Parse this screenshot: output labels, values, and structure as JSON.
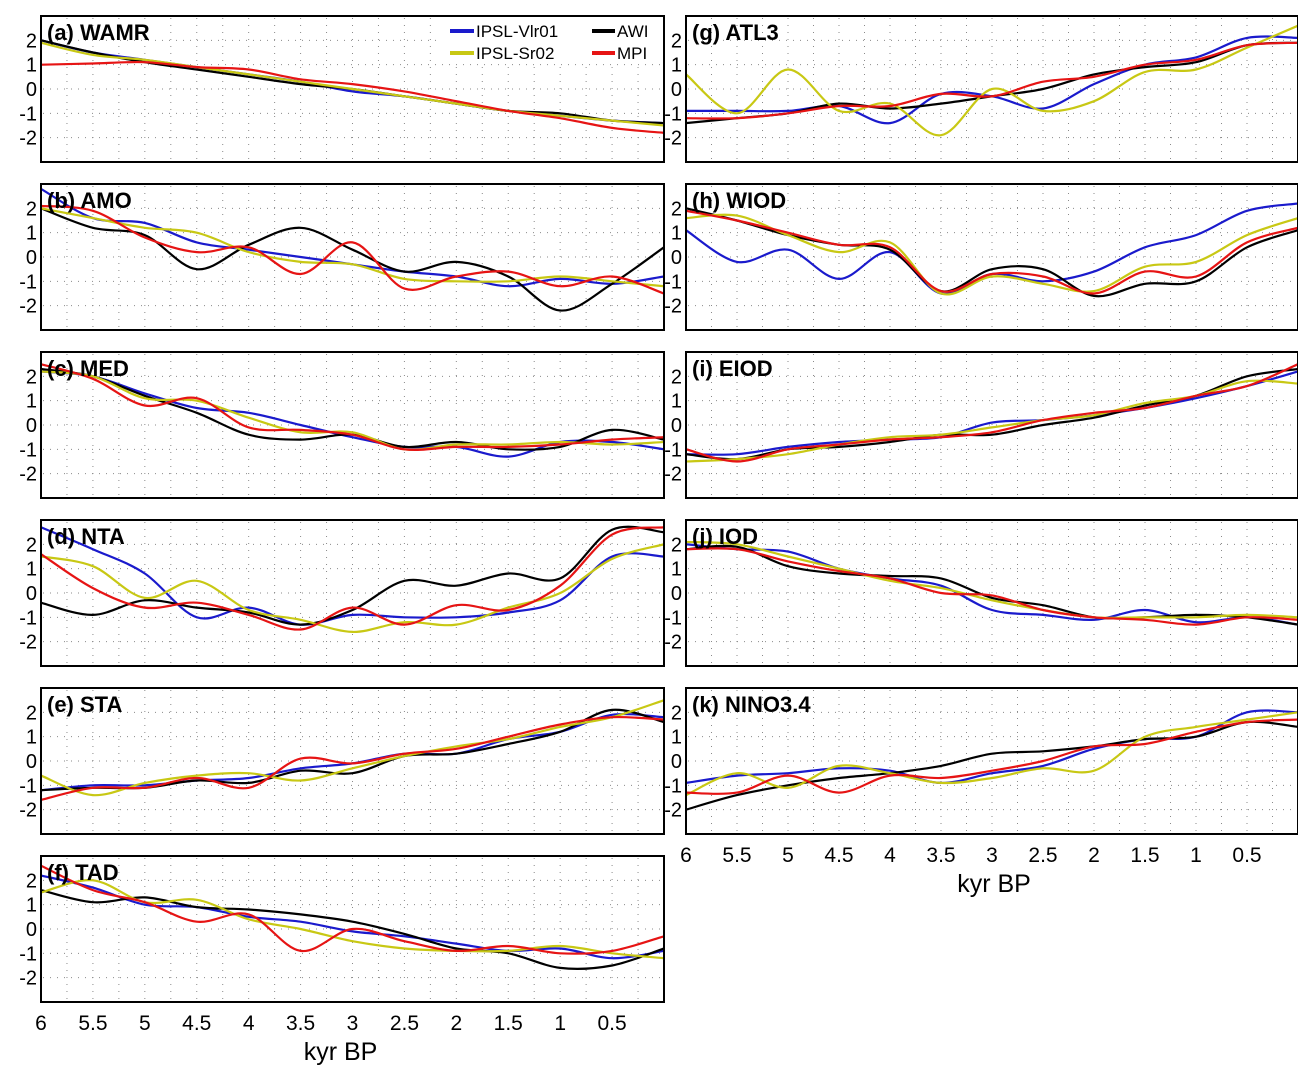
{
  "chart_data": {
    "type": "line",
    "xlabel": "kyr BP",
    "x_ticks": [
      "6",
      "5.5",
      "5",
      "4.5",
      "4",
      "3.5",
      "3",
      "2.5",
      "2",
      "1.5",
      "1",
      "0.5"
    ],
    "y_ticks": [
      "2",
      "1",
      "0",
      "-1",
      "-2"
    ],
    "xlim": [
      6,
      0
    ],
    "ylim": [
      -3,
      3
    ],
    "grid": true,
    "legend": {
      "placement": "top-right of panel (a)",
      "entries": [
        {
          "name": "IPSL-Vlr01",
          "color": "#1a1acc"
        },
        {
          "name": "AWI",
          "color": "#000000"
        },
        {
          "name": "IPSL-Sr02",
          "color": "#c8c814"
        },
        {
          "name": "MPI",
          "color": "#e61414"
        }
      ]
    },
    "x": [
      6,
      5.5,
      5,
      4.5,
      4,
      3.5,
      3,
      2.5,
      2,
      1.5,
      1,
      0.5,
      0
    ],
    "panels": [
      {
        "title": "(a) WAMR",
        "series": [
          {
            "name": "IPSL-Vlr01",
            "values": [
              2.0,
              1.5,
              1.2,
              0.9,
              0.6,
              0.3,
              -0.1,
              -0.3,
              -0.6,
              -0.9,
              -1.1,
              -1.3,
              -1.4
            ]
          },
          {
            "name": "AWI",
            "values": [
              2.0,
              1.5,
              1.1,
              0.8,
              0.5,
              0.2,
              0.0,
              -0.3,
              -0.6,
              -0.9,
              -1.0,
              -1.3,
              -1.4
            ]
          },
          {
            "name": "IPSL-Sr02",
            "values": [
              1.9,
              1.4,
              1.2,
              0.9,
              0.6,
              0.3,
              0.0,
              -0.3,
              -0.6,
              -0.9,
              -1.1,
              -1.3,
              -1.5
            ]
          },
          {
            "name": "MPI",
            "values": [
              1.0,
              1.05,
              1.1,
              0.9,
              0.8,
              0.4,
              0.2,
              -0.1,
              -0.5,
              -0.9,
              -1.2,
              -1.6,
              -1.8
            ]
          }
        ]
      },
      {
        "title": "(b) AMO",
        "series": [
          {
            "name": "IPSL-Vlr01",
            "values": [
              2.8,
              1.6,
              1.4,
              0.6,
              0.3,
              0.0,
              -0.3,
              -0.6,
              -0.8,
              -1.2,
              -0.9,
              -1.1,
              -0.8
            ]
          },
          {
            "name": "AWI",
            "values": [
              2.0,
              1.2,
              0.9,
              -0.5,
              0.5,
              1.2,
              0.3,
              -0.6,
              -0.2,
              -0.8,
              -2.2,
              -1.1,
              0.4
            ]
          },
          {
            "name": "IPSL-Sr02",
            "values": [
              2.0,
              1.6,
              1.2,
              1.0,
              0.2,
              -0.2,
              -0.3,
              -0.9,
              -1.0,
              -1.0,
              -0.8,
              -1.0,
              -1.2
            ]
          },
          {
            "name": "MPI",
            "values": [
              2.1,
              1.9,
              0.8,
              0.2,
              0.4,
              -0.7,
              0.6,
              -1.3,
              -0.8,
              -0.6,
              -1.2,
              -0.8,
              -1.5
            ]
          }
        ]
      },
      {
        "title": "(c) MED",
        "series": [
          {
            "name": "IPSL-Vlr01",
            "values": [
              2.2,
              2.0,
              1.3,
              0.7,
              0.5,
              0.0,
              -0.5,
              -0.9,
              -0.9,
              -1.3,
              -0.7,
              -0.7,
              -1.0
            ]
          },
          {
            "name": "AWI",
            "values": [
              2.3,
              2.0,
              1.2,
              0.5,
              -0.4,
              -0.6,
              -0.4,
              -0.9,
              -0.7,
              -1.0,
              -0.9,
              -0.2,
              -0.6
            ]
          },
          {
            "name": "IPSL-Sr02",
            "values": [
              2.2,
              2.0,
              1.1,
              1.0,
              0.3,
              -0.3,
              -0.3,
              -1.0,
              -0.8,
              -0.8,
              -0.7,
              -0.8,
              -0.7
            ]
          },
          {
            "name": "MPI",
            "values": [
              2.5,
              1.9,
              0.8,
              1.1,
              -0.1,
              -0.2,
              -0.4,
              -1.0,
              -0.9,
              -0.9,
              -0.8,
              -0.6,
              -0.5
            ]
          }
        ]
      },
      {
        "title": "(d) NTA",
        "series": [
          {
            "name": "IPSL-Vlr01",
            "values": [
              2.7,
              1.8,
              0.8,
              -1.0,
              -0.6,
              -1.3,
              -0.9,
              -1.0,
              -1.0,
              -0.8,
              -0.3,
              1.5,
              1.5
            ]
          },
          {
            "name": "AWI",
            "values": [
              -0.4,
              -0.9,
              -0.3,
              -0.6,
              -0.8,
              -1.3,
              -0.7,
              0.5,
              0.3,
              0.8,
              0.6,
              2.6,
              2.5
            ]
          },
          {
            "name": "IPSL-Sr02",
            "values": [
              1.5,
              1.1,
              -0.2,
              0.5,
              -0.7,
              -1.1,
              -1.6,
              -1.2,
              -1.3,
              -0.6,
              0.0,
              1.4,
              2.0
            ]
          },
          {
            "name": "MPI",
            "values": [
              1.6,
              0.2,
              -0.6,
              -0.4,
              -0.9,
              -1.5,
              -0.6,
              -1.3,
              -0.5,
              -0.7,
              0.3,
              2.4,
              2.7
            ]
          }
        ]
      },
      {
        "title": "(e) STA",
        "series": [
          {
            "name": "IPSL-Vlr01",
            "values": [
              -1.2,
              -1.0,
              -1.0,
              -0.8,
              -0.7,
              -0.3,
              -0.1,
              0.3,
              0.3,
              0.9,
              1.2,
              1.9,
              1.8
            ]
          },
          {
            "name": "AWI",
            "values": [
              -1.2,
              -1.1,
              -1.1,
              -0.8,
              -0.9,
              -0.4,
              -0.5,
              0.2,
              0.3,
              0.7,
              1.2,
              2.1,
              1.6
            ]
          },
          {
            "name": "IPSL-Sr02",
            "values": [
              -0.6,
              -1.4,
              -0.9,
              -0.6,
              -0.5,
              -0.8,
              -0.3,
              0.2,
              0.6,
              0.9,
              1.4,
              1.8,
              2.5
            ]
          },
          {
            "name": "MPI",
            "values": [
              -1.6,
              -1.1,
              -1.1,
              -0.7,
              -1.1,
              0.1,
              -0.1,
              0.3,
              0.5,
              1.0,
              1.5,
              1.8,
              1.7
            ]
          }
        ]
      },
      {
        "title": "(f) TAD",
        "series": [
          {
            "name": "IPSL-Vlr01",
            "values": [
              2.2,
              1.7,
              1.0,
              0.9,
              0.5,
              0.3,
              -0.1,
              -0.3,
              -0.6,
              -0.9,
              -0.8,
              -1.2,
              -0.9
            ]
          },
          {
            "name": "AWI",
            "values": [
              1.6,
              1.1,
              1.3,
              0.9,
              0.8,
              0.6,
              0.3,
              -0.2,
              -0.8,
              -1.0,
              -1.6,
              -1.5,
              -0.8
            ]
          },
          {
            "name": "IPSL-Sr02",
            "values": [
              1.5,
              2.0,
              1.1,
              1.2,
              0.4,
              0.0,
              -0.5,
              -0.8,
              -0.9,
              -0.9,
              -0.7,
              -1.0,
              -1.2
            ]
          },
          {
            "name": "MPI",
            "values": [
              2.6,
              1.6,
              1.1,
              0.3,
              0.6,
              -0.9,
              0.0,
              -0.5,
              -0.9,
              -0.7,
              -1.0,
              -0.9,
              -0.3
            ]
          }
        ]
      },
      {
        "title": "(g) ATL3",
        "series": [
          {
            "name": "IPSL-Vlr01",
            "values": [
              -0.9,
              -0.9,
              -0.9,
              -0.7,
              -1.4,
              -0.2,
              -0.3,
              -0.8,
              0.2,
              1.0,
              1.3,
              2.1,
              2.1
            ]
          },
          {
            "name": "AWI",
            "values": [
              -1.4,
              -1.2,
              -1.0,
              -0.6,
              -0.8,
              -0.6,
              -0.3,
              0.0,
              0.6,
              0.9,
              1.1,
              1.8,
              1.9
            ]
          },
          {
            "name": "IPSL-Sr02",
            "values": [
              0.6,
              -1.0,
              0.8,
              -0.9,
              -0.6,
              -1.9,
              0.0,
              -0.9,
              -0.5,
              0.7,
              0.8,
              1.7,
              2.6
            ]
          },
          {
            "name": "MPI",
            "values": [
              -1.2,
              -1.2,
              -1.0,
              -0.7,
              -0.7,
              -0.2,
              -0.3,
              0.3,
              0.5,
              1.0,
              1.2,
              1.8,
              1.9
            ]
          }
        ]
      },
      {
        "title": "(h) WIOD",
        "series": [
          {
            "name": "IPSL-Vlr01",
            "values": [
              1.1,
              -0.2,
              0.3,
              -0.9,
              0.2,
              -1.5,
              -0.7,
              -1.0,
              -0.6,
              0.4,
              0.9,
              1.9,
              2.2
            ]
          },
          {
            "name": "AWI",
            "values": [
              2.0,
              1.5,
              0.9,
              0.5,
              0.3,
              -1.4,
              -0.5,
              -0.5,
              -1.6,
              -1.1,
              -1.0,
              0.4,
              1.1
            ]
          },
          {
            "name": "IPSL-Sr02",
            "values": [
              1.6,
              1.7,
              0.9,
              0.2,
              0.6,
              -1.5,
              -0.8,
              -1.1,
              -1.4,
              -0.4,
              -0.2,
              0.9,
              1.6
            ]
          },
          {
            "name": "MPI",
            "values": [
              1.9,
              1.5,
              1.0,
              0.5,
              0.4,
              -1.4,
              -0.7,
              -0.8,
              -1.5,
              -0.6,
              -0.8,
              0.6,
              1.2
            ]
          }
        ]
      },
      {
        "title": "(i) EIOD",
        "series": [
          {
            "name": "IPSL-Vlr01",
            "values": [
              -1.2,
              -1.2,
              -0.9,
              -0.7,
              -0.6,
              -0.5,
              0.1,
              0.2,
              0.4,
              0.7,
              1.1,
              1.6,
              2.2
            ]
          },
          {
            "name": "AWI",
            "values": [
              -1.2,
              -1.4,
              -1.0,
              -0.9,
              -0.7,
              -0.4,
              -0.4,
              0.0,
              0.3,
              0.8,
              1.2,
              2.0,
              2.3
            ]
          },
          {
            "name": "IPSL-Sr02",
            "values": [
              -1.5,
              -1.4,
              -1.2,
              -0.8,
              -0.5,
              -0.4,
              -0.1,
              0.2,
              0.4,
              0.9,
              1.2,
              1.8,
              1.7
            ]
          },
          {
            "name": "MPI",
            "values": [
              -1.0,
              -1.5,
              -1.0,
              -0.8,
              -0.6,
              -0.5,
              -0.3,
              0.2,
              0.5,
              0.7,
              1.2,
              1.6,
              2.5
            ]
          }
        ]
      },
      {
        "title": "(j) IOD",
        "series": [
          {
            "name": "IPSL-Vlr01",
            "values": [
              2.0,
              1.8,
              1.7,
              1.0,
              0.6,
              0.3,
              -0.7,
              -0.9,
              -1.1,
              -0.7,
              -1.2,
              -1.0,
              -1.3
            ]
          },
          {
            "name": "AWI",
            "values": [
              1.8,
              1.9,
              1.1,
              0.8,
              0.7,
              0.6,
              -0.2,
              -0.5,
              -1.0,
              -1.0,
              -0.9,
              -1.0,
              -1.3
            ]
          },
          {
            "name": "IPSL-Sr02",
            "values": [
              2.1,
              2.0,
              1.5,
              1.0,
              0.5,
              0.2,
              -0.3,
              -0.7,
              -1.0,
              -1.0,
              -1.0,
              -0.9,
              -1.0
            ]
          },
          {
            "name": "MPI",
            "values": [
              1.8,
              1.8,
              1.3,
              0.9,
              0.6,
              0.0,
              -0.1,
              -0.7,
              -1.0,
              -1.1,
              -1.3,
              -1.0,
              -1.1
            ]
          }
        ]
      },
      {
        "title": "(k) NINO3.4",
        "series": [
          {
            "name": "IPSL-Vlr01",
            "values": [
              -0.9,
              -0.6,
              -0.5,
              -0.3,
              -0.4,
              -0.9,
              -0.5,
              -0.2,
              0.5,
              0.9,
              1.0,
              2.0,
              2.0
            ]
          },
          {
            "name": "AWI",
            "values": [
              -2.0,
              -1.4,
              -1.0,
              -0.7,
              -0.5,
              -0.2,
              0.3,
              0.4,
              0.6,
              0.9,
              1.0,
              1.6,
              1.4
            ]
          },
          {
            "name": "IPSL-Sr02",
            "values": [
              -1.4,
              -0.5,
              -1.1,
              -0.2,
              -0.5,
              -0.9,
              -0.7,
              -0.3,
              -0.4,
              1.0,
              1.4,
              1.7,
              2.0
            ]
          },
          {
            "name": "MPI",
            "values": [
              -1.3,
              -1.3,
              -0.6,
              -1.3,
              -0.6,
              -0.7,
              -0.4,
              0.0,
              0.6,
              0.7,
              1.2,
              1.6,
              1.7
            ]
          }
        ]
      }
    ]
  }
}
